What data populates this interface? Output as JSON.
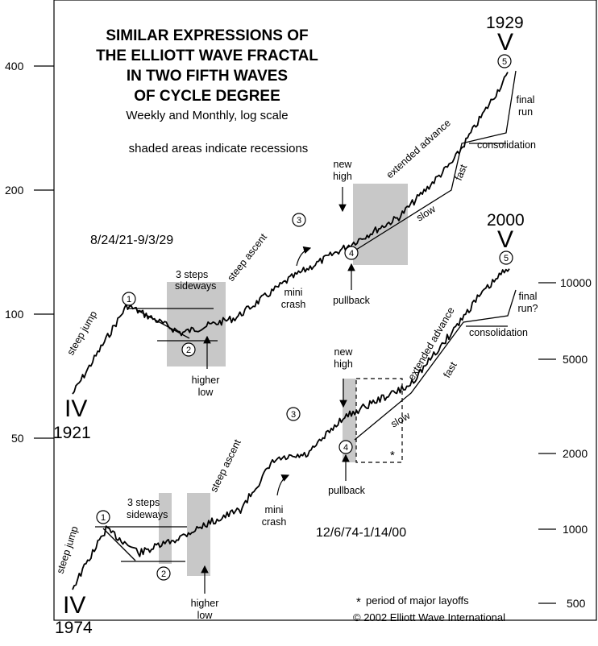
{
  "title_lines": [
    "SIMILAR EXPRESSIONS OF",
    "THE ELLIOTT WAVE FRACTAL",
    "IN TWO FIFTH WAVES",
    "OF CYCLE DEGREE"
  ],
  "subtitle": "Weekly and Monthly, log scale",
  "note": "shaded areas indicate recessions",
  "colors": {
    "line": "#000000",
    "shade": "#c8c8c8",
    "background": "#ffffff"
  },
  "chart_data": [
    {
      "type": "line",
      "name": "8/24/21-9/3/29",
      "axis": "left",
      "scale": "log",
      "ylim": [
        30,
        500
      ],
      "yticks": [
        50,
        100,
        200,
        400
      ],
      "ytick_labels": [
        "50",
        "100",
        "200",
        "400"
      ],
      "x": [
        "1921",
        "1922",
        "1923",
        "1924",
        "1925",
        "1926",
        "1927",
        "1928",
        "1929"
      ],
      "values": [
        64,
        105,
        90,
        98,
        122,
        145,
        172,
        235,
        381
      ],
      "start_label": "IV",
      "start_year": "1921",
      "end_label": "V",
      "end_year": "1929",
      "waves": [
        "1",
        "2",
        "3",
        "4",
        "5"
      ],
      "annotations": [
        "steep jump",
        "3 steps",
        "sideways",
        "higher",
        "low",
        "steep ascent",
        "mini",
        "crash",
        "new",
        "high",
        "pullback",
        "extended advance",
        "slow",
        "fast",
        "consolidation",
        "final",
        "run"
      ]
    },
    {
      "type": "line",
      "name": "12/6/74-1/14/00",
      "axis": "right",
      "scale": "log",
      "ylim": [
        400,
        14000
      ],
      "yticks": [
        500,
        1000,
        2000,
        5000,
        10000
      ],
      "ytick_labels": [
        "500",
        "1000",
        "2000",
        "5000",
        "10000"
      ],
      "x": [
        "1974",
        "1976",
        "1978",
        "1980",
        "1982",
        "1984",
        "1986",
        "1988",
        "1990",
        "1992",
        "1994",
        "1996",
        "1998",
        "2000"
      ],
      "values": [
        577,
        1000,
        800,
        900,
        1050,
        1200,
        1900,
        2000,
        2800,
        3300,
        3800,
        5600,
        8500,
        11700
      ],
      "start_label": "IV",
      "start_year": "1974",
      "end_label": "V",
      "end_year": "2000",
      "waves": [
        "1",
        "2",
        "3",
        "4",
        "5"
      ],
      "annotations": [
        "steep jump",
        "3 steps",
        "sideways",
        "higher",
        "low",
        "steep ascent",
        "mini",
        "crash",
        "new",
        "high",
        "pullback",
        "extended advance",
        "slow",
        "fast",
        "consolidation",
        "final",
        "run?",
        "*"
      ]
    }
  ],
  "footnote": "period of major layoffs",
  "footnote_mark": "*",
  "copyright": "© 2002 Elliott Wave International"
}
